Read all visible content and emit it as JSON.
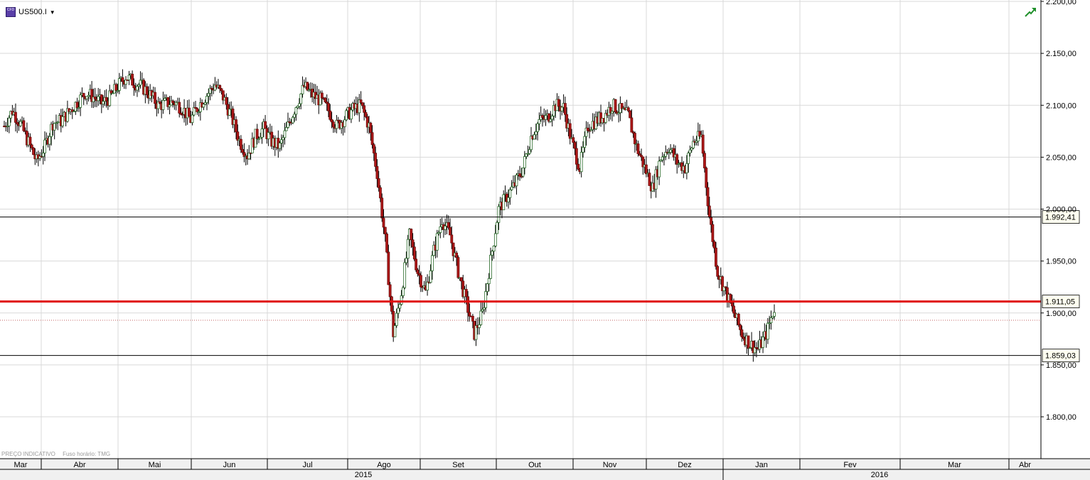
{
  "header": {
    "symbol": "US500.I",
    "symbol_icon_text": "CFD",
    "symbol_icon": "cfd-badge-icon",
    "dropdown_icon": "caret-down-icon",
    "trend_icon": "green-trend-arrow-icon"
  },
  "footer": {
    "price_type": "PREÇO INDICATIVO",
    "timezone": "Fuso horário: TMG"
  },
  "colors": {
    "bull_candle": "#ffffff",
    "bull_outline": "#2a6b2a",
    "bear_candle": "#b01818",
    "support_line": "#000000",
    "key_level": "#e01010",
    "grid": "#d9d9d9",
    "axis_bg": "#f0f0f0"
  },
  "chart_data": {
    "type": "candlestick",
    "title": "",
    "ylim": [
      1750,
      2200
    ],
    "y_ticks": [
      "2.200,00",
      "2.150,00",
      "2.100,00",
      "2.050,00",
      "2.000,00",
      "1.950,00",
      "1.900,00",
      "1.850,00",
      "1.800,00"
    ],
    "y_tick_values": [
      2200,
      2150,
      2100,
      2050,
      2000,
      1950,
      1900,
      1850,
      1800
    ],
    "months": [
      "Mar",
      "Abr",
      "Mai",
      "Jun",
      "Jul",
      "Ago",
      "Set",
      "Out",
      "Nov",
      "Dez",
      "Jan",
      "Fev",
      "Mar",
      "Abr"
    ],
    "years": [
      "2015",
      "2016"
    ],
    "horizontal_levels": [
      {
        "value": 1992.41,
        "label": "1.992,41",
        "style": "black"
      },
      {
        "value": 1911.05,
        "label": "1.911,05",
        "style": "red-thick"
      },
      {
        "value": 1859.03,
        "label": "1.859,03",
        "style": "black"
      }
    ],
    "dotted_level": 1893,
    "grid": true,
    "candle_path_weekly": [
      2080,
      2095,
      2082,
      2064,
      2046,
      2060,
      2083,
      2085,
      2094,
      2103,
      2112,
      2108,
      2102,
      2107,
      2118,
      2128,
      2122,
      2118,
      2110,
      2100,
      2102,
      2103,
      2097,
      2086,
      2100,
      2110,
      2120,
      2108,
      2090,
      2066,
      2052,
      2070,
      2078,
      2065,
      2060,
      2080,
      2100,
      2118,
      2110,
      2105,
      2095,
      2080,
      2088,
      2096,
      2100,
      2080,
      2035,
      1970,
      1880,
      1920,
      1975,
      1940,
      1920,
      1960,
      1990,
      1975,
      1940,
      1910,
      1880,
      1900,
      1950,
      2000,
      2012,
      2024,
      2040,
      2070,
      2085,
      2088,
      2100,
      2098,
      2065,
      2040,
      2080,
      2085,
      2090,
      2100,
      2095,
      2090,
      2060,
      2040,
      2020,
      2050,
      2060,
      2045,
      2040,
      2065,
      2070,
      1993,
      1940,
      1920,
      1900,
      1880,
      1870,
      1865,
      1880,
      1905
    ]
  }
}
